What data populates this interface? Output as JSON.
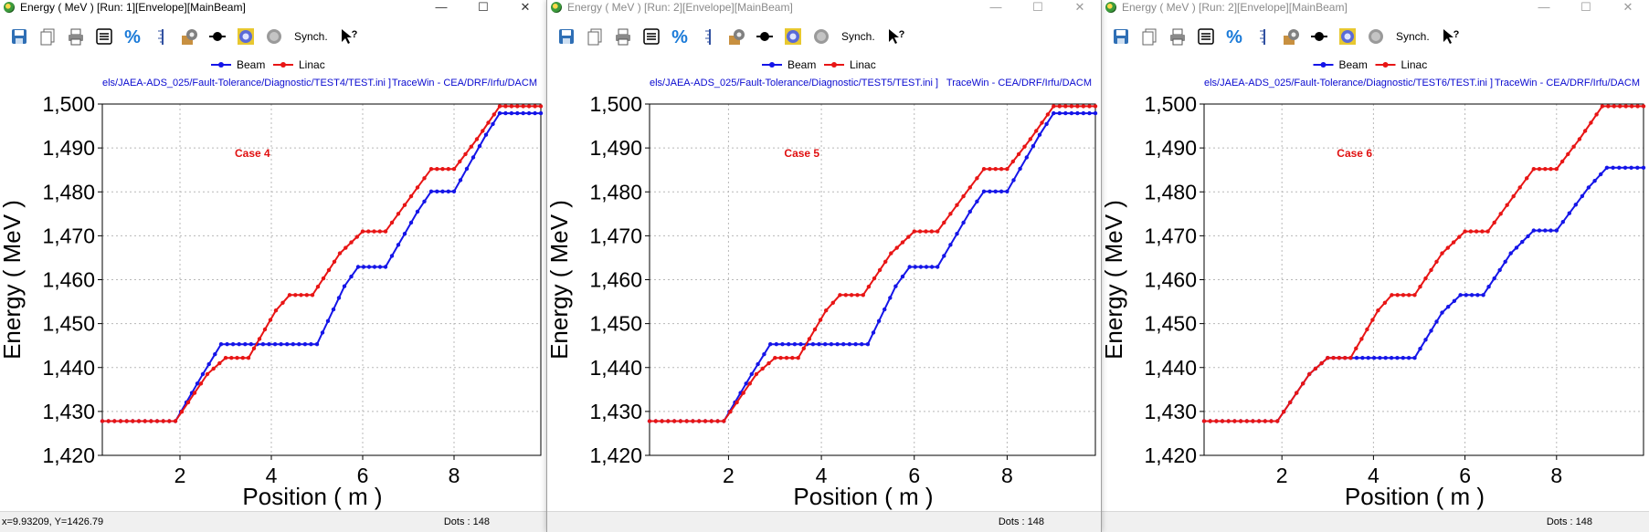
{
  "colors": {
    "beam": "#1515e8",
    "linac": "#e81515",
    "link": "#0a0ad0",
    "annotation": "#e01010",
    "grid": "#b8b8b8"
  },
  "toolbar": {
    "icons": [
      "save-icon",
      "copy-icon",
      "print-icon",
      "list-icon",
      "percent-icon",
      "ruler-icon",
      "settings-icon",
      "marker-icon",
      "image-icon",
      "circle-icon"
    ],
    "synch_label": "Synch.",
    "help_icon": "help-cursor-icon"
  },
  "windows": [
    {
      "title": "Energy ( MeV ) [Run: 1][Envelope][MainBeam]",
      "buttons": {
        "minimize": "—",
        "maximize": "☐",
        "close": "✕"
      },
      "path": "els/JAEA-ADS_025/Fault-Tolerance/Diagnostic/TEST4/TEST.ini ]",
      "credit": "TraceWin - CEA/DRF/Irfu/DACM",
      "status_coords": "x=9.93209, Y=1426.79",
      "status_dots": "Dots : 148"
    },
    {
      "title": "Energy ( MeV ) [Run: 2][Envelope][MainBeam]",
      "buttons": {
        "minimize": "—",
        "maximize": "☐",
        "close": "✕"
      },
      "path": "els/JAEA-ADS_025/Fault-Tolerance/Diagnostic/TEST5/TEST.ini ]",
      "credit": "TraceWin - CEA/DRF/Irfu/DACM",
      "status_coords": "",
      "status_dots": "Dots : 148"
    },
    {
      "title": "Energy ( MeV ) [Run: 2][Envelope][MainBeam]",
      "buttons": {
        "minimize": "—",
        "maximize": "☐",
        "close": "✕"
      },
      "path": "els/JAEA-ADS_025/Fault-Tolerance/Diagnostic/TEST6/TEST.ini ]",
      "credit": "TraceWin - CEA/DRF/Irfu/DACM",
      "status_coords": "",
      "status_dots": "Dots : 148"
    }
  ],
  "chart_data": [
    {
      "type": "line",
      "xlabel": "Position ( m )",
      "ylabel": "Energy ( MeV )",
      "xlim": [
        0.3,
        9.9
      ],
      "ylim": [
        1420,
        1500
      ],
      "xticks": [
        2,
        4,
        6,
        8
      ],
      "yticks": [
        1420,
        1430,
        1440,
        1450,
        1460,
        1470,
        1480,
        1490,
        1500
      ],
      "ytick_labels": [
        "1,420",
        "1,430",
        "1,440",
        "1,450",
        "1,460",
        "1,470",
        "1,480",
        "1,490",
        "1,500"
      ],
      "grid": true,
      "legend_position": "top-center",
      "annotation": "Case 4",
      "series": [
        {
          "name": "Beam",
          "points": [
            [
              0.3,
              1427.8
            ],
            [
              1.9,
              1427.8
            ],
            [
              2.5,
              1438.5
            ],
            [
              2.9,
              1445.3
            ],
            [
              5.0,
              1445.3
            ],
            [
              5.6,
              1458.5
            ],
            [
              5.9,
              1462.9
            ],
            [
              6.5,
              1462.9
            ],
            [
              7.2,
              1475.5
            ],
            [
              7.5,
              1480.1
            ],
            [
              8.0,
              1480.1
            ],
            [
              8.7,
              1493.0
            ],
            [
              9.0,
              1497.9
            ],
            [
              9.9,
              1497.9
            ]
          ]
        },
        {
          "name": "Linac",
          "points": [
            [
              0.3,
              1427.8
            ],
            [
              1.9,
              1427.8
            ],
            [
              2.6,
              1438.5
            ],
            [
              3.0,
              1442.2
            ],
            [
              3.5,
              1442.2
            ],
            [
              4.1,
              1453.0
            ],
            [
              4.4,
              1456.5
            ],
            [
              4.9,
              1456.5
            ],
            [
              5.5,
              1466.0
            ],
            [
              6.0,
              1471.0
            ],
            [
              6.5,
              1471.0
            ],
            [
              7.2,
              1481.0
            ],
            [
              7.5,
              1485.2
            ],
            [
              8.0,
              1485.2
            ],
            [
              8.5,
              1492.0
            ],
            [
              9.0,
              1499.5
            ],
            [
              9.9,
              1499.5
            ]
          ]
        }
      ]
    },
    {
      "type": "line",
      "xlabel": "Position ( m )",
      "ylabel": "Energy ( MeV )",
      "xlim": [
        0.3,
        9.9
      ],
      "ylim": [
        1420,
        1500
      ],
      "xticks": [
        2,
        4,
        6,
        8
      ],
      "yticks": [
        1420,
        1430,
        1440,
        1450,
        1460,
        1470,
        1480,
        1490,
        1500
      ],
      "ytick_labels": [
        "1,420",
        "1,430",
        "1,440",
        "1,450",
        "1,460",
        "1,470",
        "1,480",
        "1,490",
        "1,500"
      ],
      "grid": true,
      "legend_position": "top-center",
      "annotation": "Case 5",
      "series": [
        {
          "name": "Beam",
          "points": [
            [
              0.3,
              1427.8
            ],
            [
              1.9,
              1427.8
            ],
            [
              2.5,
              1438.5
            ],
            [
              2.9,
              1445.3
            ],
            [
              5.0,
              1445.3
            ],
            [
              5.6,
              1458.5
            ],
            [
              5.9,
              1462.9
            ],
            [
              6.5,
              1462.9
            ],
            [
              7.2,
              1475.5
            ],
            [
              7.5,
              1480.1
            ],
            [
              8.0,
              1480.1
            ],
            [
              8.7,
              1493.0
            ],
            [
              9.0,
              1497.9
            ],
            [
              9.9,
              1497.9
            ]
          ]
        },
        {
          "name": "Linac",
          "points": [
            [
              0.3,
              1427.8
            ],
            [
              1.9,
              1427.8
            ],
            [
              2.6,
              1438.5
            ],
            [
              3.0,
              1442.2
            ],
            [
              3.5,
              1442.2
            ],
            [
              4.1,
              1453.0
            ],
            [
              4.4,
              1456.5
            ],
            [
              4.9,
              1456.5
            ],
            [
              5.5,
              1466.0
            ],
            [
              6.0,
              1471.0
            ],
            [
              6.5,
              1471.0
            ],
            [
              7.2,
              1481.0
            ],
            [
              7.5,
              1485.2
            ],
            [
              8.0,
              1485.2
            ],
            [
              8.5,
              1492.0
            ],
            [
              9.0,
              1499.5
            ],
            [
              9.9,
              1499.5
            ]
          ]
        }
      ]
    },
    {
      "type": "line",
      "xlabel": "Position ( m )",
      "ylabel": "Energy ( MeV )",
      "xlim": [
        0.3,
        9.9
      ],
      "ylim": [
        1420,
        1500
      ],
      "xticks": [
        2,
        4,
        6,
        8
      ],
      "yticks": [
        1420,
        1430,
        1440,
        1450,
        1460,
        1470,
        1480,
        1490,
        1500
      ],
      "ytick_labels": [
        "1,420",
        "1,430",
        "1,440",
        "1,450",
        "1,460",
        "1,470",
        "1,480",
        "1,490",
        "1,500"
      ],
      "grid": true,
      "legend_position": "top-center",
      "annotation": "Case 6",
      "series": [
        {
          "name": "Beam",
          "points": [
            [
              0.3,
              1427.8
            ],
            [
              1.9,
              1427.8
            ],
            [
              2.6,
              1438.5
            ],
            [
              3.0,
              1442.2
            ],
            [
              4.9,
              1442.2
            ],
            [
              5.5,
              1452.5
            ],
            [
              5.9,
              1456.5
            ],
            [
              6.4,
              1456.5
            ],
            [
              7.0,
              1466.0
            ],
            [
              7.5,
              1471.2
            ],
            [
              8.0,
              1471.2
            ],
            [
              8.7,
              1481.0
            ],
            [
              9.1,
              1485.5
            ],
            [
              9.9,
              1485.5
            ]
          ]
        },
        {
          "name": "Linac",
          "points": [
            [
              0.3,
              1427.8
            ],
            [
              1.9,
              1427.8
            ],
            [
              2.6,
              1438.5
            ],
            [
              3.0,
              1442.2
            ],
            [
              3.5,
              1442.2
            ],
            [
              4.1,
              1453.0
            ],
            [
              4.4,
              1456.5
            ],
            [
              4.9,
              1456.5
            ],
            [
              5.5,
              1466.0
            ],
            [
              6.0,
              1471.0
            ],
            [
              6.5,
              1471.0
            ],
            [
              7.2,
              1481.0
            ],
            [
              7.5,
              1485.2
            ],
            [
              8.0,
              1485.2
            ],
            [
              8.5,
              1492.0
            ],
            [
              9.0,
              1499.5
            ],
            [
              9.9,
              1499.5
            ]
          ]
        }
      ]
    }
  ]
}
